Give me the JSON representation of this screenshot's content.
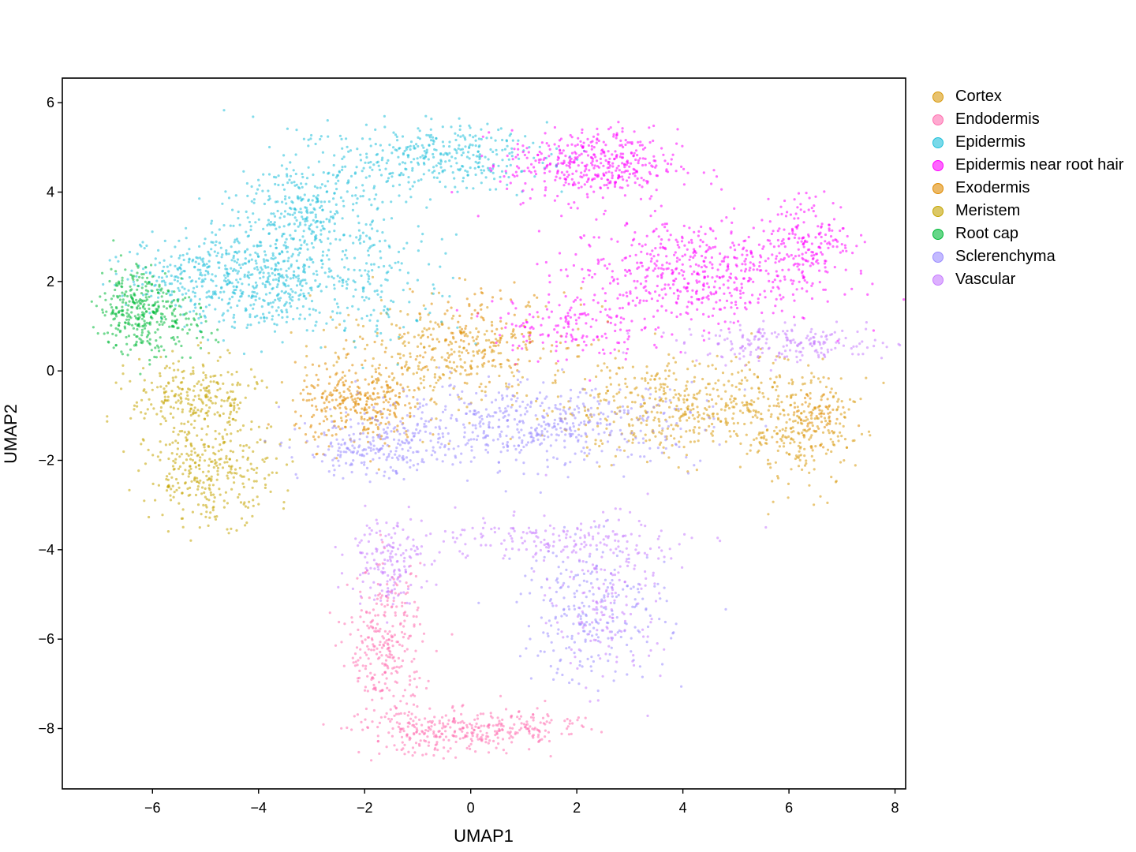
{
  "chart_data": {
    "type": "scatter",
    "title": "",
    "xlabel": "UMAP1",
    "ylabel": "UMAP2",
    "xlim": [
      -7.7,
      8.2
    ],
    "ylim": [
      -9.35,
      6.55
    ],
    "xticks": [
      -6,
      -4,
      -2,
      0,
      2,
      4,
      6,
      8
    ],
    "yticks": [
      6,
      4,
      2,
      0,
      -2,
      -4,
      -6,
      -8
    ],
    "xtick_labels": [
      "−6",
      "−4",
      "−2",
      "0",
      "2",
      "4",
      "6",
      "8"
    ],
    "ytick_labels": [
      "6",
      "4",
      "2",
      "0",
      "−2",
      "−4",
      "−6",
      "−8"
    ],
    "grid": false,
    "legend_position": "right",
    "series": [
      {
        "name": "Cortex",
        "color": "#D99A0E",
        "regions": [
          {
            "cx": 4.0,
            "cy": -0.8,
            "sx": 1.3,
            "sy": 0.55,
            "n": 500
          },
          {
            "cx": 6.2,
            "cy": -1.4,
            "sx": 0.5,
            "sy": 0.6,
            "n": 220
          },
          {
            "cx": -0.5,
            "cy": 0.4,
            "sx": 1.2,
            "sy": 0.6,
            "n": 280
          }
        ]
      },
      {
        "name": "Endodermis",
        "color": "#FF6FB0",
        "regions": [
          {
            "cx": -1.6,
            "cy": -6.2,
            "sx": 0.35,
            "sy": 0.9,
            "n": 300
          },
          {
            "cx": -0.4,
            "cy": -8.1,
            "sx": 0.8,
            "sy": 0.25,
            "n": 260
          },
          {
            "cx": 1.2,
            "cy": -7.9,
            "sx": 0.5,
            "sy": 0.2,
            "n": 90
          }
        ]
      },
      {
        "name": "Epidermis",
        "color": "#1FC0DA",
        "regions": [
          {
            "cx": -4.0,
            "cy": 2.0,
            "sx": 0.8,
            "sy": 0.55,
            "n": 420
          },
          {
            "cx": -3.0,
            "cy": 3.6,
            "sx": 0.7,
            "sy": 0.7,
            "n": 360
          },
          {
            "cx": -0.6,
            "cy": 4.8,
            "sx": 1.0,
            "sy": 0.35,
            "n": 330
          },
          {
            "cx": -5.3,
            "cy": 2.2,
            "sx": 0.6,
            "sy": 0.4,
            "n": 180
          },
          {
            "cx": -1.8,
            "cy": 2.0,
            "sx": 0.8,
            "sy": 0.8,
            "n": 160
          }
        ]
      },
      {
        "name": "Epidermis near root hair",
        "color": "#FF00FF",
        "regions": [
          {
            "cx": 2.3,
            "cy": 4.6,
            "sx": 0.8,
            "sy": 0.4,
            "n": 420
          },
          {
            "cx": 4.2,
            "cy": 2.2,
            "sx": 1.2,
            "sy": 0.6,
            "n": 560
          },
          {
            "cx": 6.4,
            "cy": 3.0,
            "sx": 0.4,
            "sy": 0.45,
            "n": 160
          },
          {
            "cx": 1.8,
            "cy": 1.0,
            "sx": 0.7,
            "sy": 0.4,
            "n": 150
          }
        ]
      },
      {
        "name": "Exodermis",
        "color": "#E08A00",
        "regions": [
          {
            "cx": -2.1,
            "cy": -0.8,
            "sx": 0.6,
            "sy": 0.45,
            "n": 320
          },
          {
            "cx": 0.2,
            "cy": 0.8,
            "sx": 0.8,
            "sy": 0.5,
            "n": 160
          },
          {
            "cx": 6.5,
            "cy": -1.0,
            "sx": 0.3,
            "sy": 0.3,
            "n": 60
          }
        ]
      },
      {
        "name": "Meristem",
        "color": "#C4A400",
        "regions": [
          {
            "cx": -5.2,
            "cy": -0.6,
            "sx": 0.6,
            "sy": 0.45,
            "n": 260
          },
          {
            "cx": -4.9,
            "cy": -2.3,
            "sx": 0.6,
            "sy": 0.55,
            "n": 320
          }
        ]
      },
      {
        "name": "Root cap",
        "color": "#00BA38",
        "regions": [
          {
            "cx": -6.3,
            "cy": 1.4,
            "sx": 0.35,
            "sy": 0.5,
            "n": 300
          },
          {
            "cx": -5.6,
            "cy": 1.0,
            "sx": 0.4,
            "sy": 0.3,
            "n": 80
          }
        ]
      },
      {
        "name": "Sclerenchyma",
        "color": "#9B8CFF",
        "regions": [
          {
            "cx": 1.2,
            "cy": -1.2,
            "sx": 1.6,
            "sy": 0.45,
            "n": 520
          },
          {
            "cx": -1.8,
            "cy": -1.8,
            "sx": 0.7,
            "sy": 0.3,
            "n": 200
          },
          {
            "cx": 2.3,
            "cy": -5.4,
            "sx": 0.7,
            "sy": 0.8,
            "n": 240
          }
        ]
      },
      {
        "name": "Vascular",
        "color": "#C77CFF",
        "regions": [
          {
            "cx": 6.0,
            "cy": 0.6,
            "sx": 1.0,
            "sy": 0.2,
            "n": 200
          },
          {
            "cx": -1.6,
            "cy": -4.2,
            "sx": 0.35,
            "sy": 0.5,
            "n": 160
          },
          {
            "cx": 1.6,
            "cy": -3.8,
            "sx": 1.2,
            "sy": 0.25,
            "n": 180
          },
          {
            "cx": 2.6,
            "cy": -5.2,
            "sx": 0.5,
            "sy": 0.9,
            "n": 160
          }
        ]
      }
    ]
  }
}
